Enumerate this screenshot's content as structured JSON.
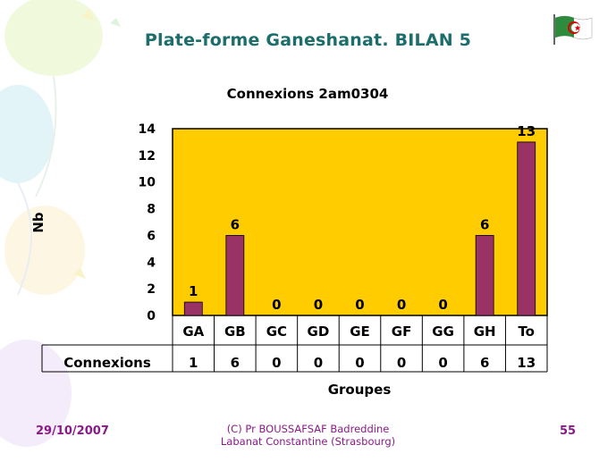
{
  "slide": {
    "title": "Plate-forme Ganeshanat. BILAN 5",
    "footer_date": "29/10/2007",
    "footer_credit_line1": "(C) Pr BOUSSAFSAF Badreddine",
    "footer_credit_line2": "Labanat Constantine (Strasbourg)",
    "footer_page": "55",
    "flag_icon": "algeria-flag-icon"
  },
  "colors": {
    "plot_bg": "#ffcc00",
    "bar": "#993366",
    "title": "#1b6e6b",
    "footer": "#8a1a8a"
  },
  "chart_data": {
    "type": "bar",
    "title": "Connexions 2am0304",
    "xlabel": "Groupes",
    "ylabel": "Nb",
    "categories": [
      "GA",
      "GB",
      "GC",
      "GD",
      "GE",
      "GF",
      "GG",
      "GH",
      "To"
    ],
    "series": [
      {
        "name": "Connexions",
        "values": [
          1,
          6,
          0,
          0,
          0,
          0,
          0,
          6,
          13
        ]
      }
    ],
    "ylim": [
      0,
      14
    ],
    "yticks": [
      0,
      2,
      4,
      6,
      8,
      10,
      12,
      14
    ],
    "grid": false,
    "data_labels": true,
    "data_table": true
  }
}
